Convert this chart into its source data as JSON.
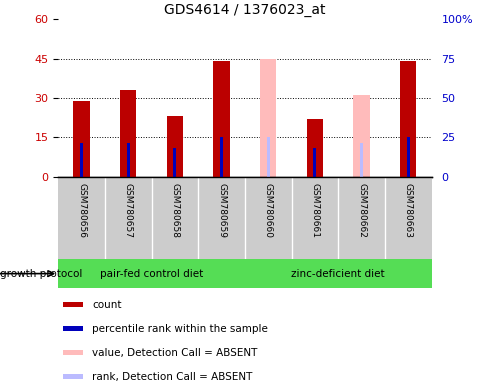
{
  "title": "GDS4614 / 1376023_at",
  "samples": [
    "GSM780656",
    "GSM780657",
    "GSM780658",
    "GSM780659",
    "GSM780660",
    "GSM780661",
    "GSM780662",
    "GSM780663"
  ],
  "count_values": [
    29,
    33,
    23,
    44,
    null,
    22,
    null,
    44
  ],
  "count_color": "#bb0000",
  "percentile_values": [
    13,
    13,
    11,
    15,
    null,
    11,
    null,
    15
  ],
  "percentile_color": "#0000bb",
  "absent_value_values": [
    null,
    null,
    null,
    null,
    45,
    null,
    31,
    null
  ],
  "absent_value_color": "#ffbbbb",
  "absent_rank_values": [
    null,
    null,
    null,
    null,
    15,
    null,
    13,
    null
  ],
  "absent_rank_color": "#bbbbff",
  "ylim_left": [
    0,
    60
  ],
  "ylim_right": [
    0,
    100
  ],
  "yticks_left": [
    0,
    15,
    30,
    45,
    60
  ],
  "yticks_right": [
    0,
    25,
    50,
    75,
    100
  ],
  "ytick_labels_left": [
    "0",
    "15",
    "30",
    "45",
    "60"
  ],
  "ytick_labels_right": [
    "0",
    "25",
    "50",
    "75",
    "100%"
  ],
  "group1_label": "pair-fed control diet",
  "group2_label": "zinc-deficient diet",
  "group1_indices": [
    0,
    1,
    2,
    3
  ],
  "group2_indices": [
    4,
    5,
    6,
    7
  ],
  "group_bg_color": "#55dd55",
  "protocol_label": "growth protocol",
  "legend_items": [
    {
      "label": "count",
      "color": "#bb0000"
    },
    {
      "label": "percentile rank within the sample",
      "color": "#0000bb"
    },
    {
      "label": "value, Detection Call = ABSENT",
      "color": "#ffbbbb"
    },
    {
      "label": "rank, Detection Call = ABSENT",
      "color": "#bbbbff"
    }
  ],
  "bar_width": 0.35,
  "axis_label_color_left": "#cc0000",
  "axis_label_color_right": "#0000cc",
  "xlabel_area_bg": "#cccccc",
  "plot_bg": "white",
  "dotted_lines": [
    15,
    30,
    45
  ]
}
